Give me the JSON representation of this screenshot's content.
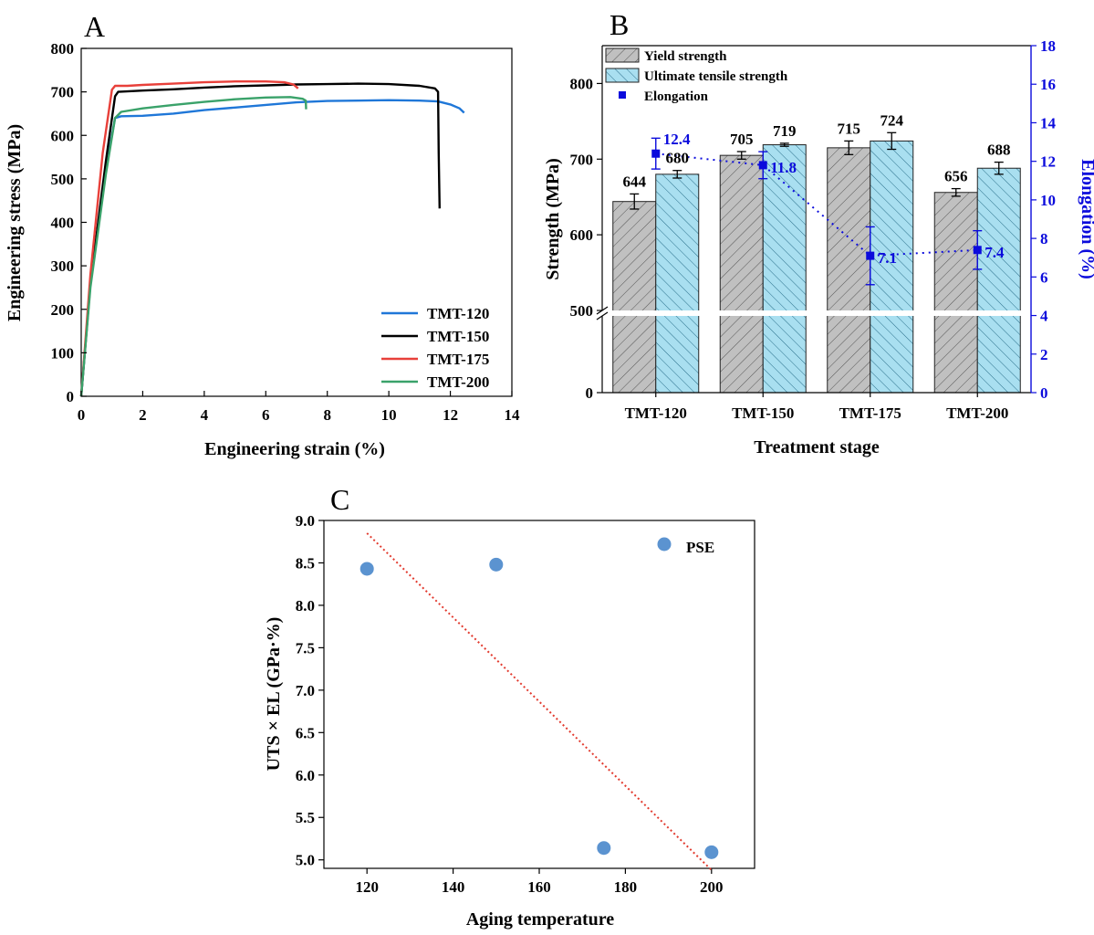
{
  "panels": {
    "a": "A",
    "b": "B",
    "c": "C"
  },
  "colors": {
    "tmt120": "#1f77d8",
    "tmt150": "#000000",
    "tmt175": "#e8403a",
    "tmt200": "#3aa26a",
    "yield_fill": "#c0c0c0",
    "uts_fill": "#a9dff0",
    "elong": "#0b0bdc",
    "pse": "#5b93d0",
    "fit": "#e23a2e"
  },
  "chart_data": [
    {
      "id": "A",
      "type": "line",
      "xlabel": "Engineering strain (%)",
      "ylabel": "Engineering stress (MPa)",
      "xlim": [
        0,
        14
      ],
      "ylim": [
        0,
        800
      ],
      "xticks": [
        0,
        2,
        4,
        6,
        8,
        10,
        12,
        14
      ],
      "yticks": [
        0,
        100,
        200,
        300,
        400,
        500,
        600,
        700,
        800
      ],
      "legend_position": "bottom-right",
      "series": [
        {
          "name": "TMT-120",
          "color": "#1f77d8",
          "points": [
            [
              0,
              0
            ],
            [
              0.3,
              260
            ],
            [
              0.8,
              520
            ],
            [
              1.1,
              640
            ],
            [
              1.3,
              644
            ],
            [
              2,
              645
            ],
            [
              3,
              650
            ],
            [
              4,
              658
            ],
            [
              5,
              664
            ],
            [
              6,
              670
            ],
            [
              7,
              676
            ],
            [
              8,
              679
            ],
            [
              9,
              680
            ],
            [
              10,
              681
            ],
            [
              11,
              680
            ],
            [
              11.6,
              678
            ],
            [
              12,
              671
            ],
            [
              12.3,
              662
            ],
            [
              12.45,
              652
            ]
          ]
        },
        {
          "name": "TMT-150",
          "color": "#000000",
          "points": [
            [
              0,
              0
            ],
            [
              0.3,
              260
            ],
            [
              0.8,
              540
            ],
            [
              1.1,
              690
            ],
            [
              1.2,
              700
            ],
            [
              2,
              703
            ],
            [
              3,
              706
            ],
            [
              4,
              710
            ],
            [
              5,
              713
            ],
            [
              6,
              715
            ],
            [
              7,
              717
            ],
            [
              8,
              718
            ],
            [
              9,
              719
            ],
            [
              10,
              718
            ],
            [
              11,
              714
            ],
            [
              11.5,
              708
            ],
            [
              11.6,
              700
            ],
            [
              11.62,
              560
            ],
            [
              11.65,
              432
            ]
          ]
        },
        {
          "name": "TMT-175",
          "color": "#e8403a",
          "points": [
            [
              0,
              0
            ],
            [
              0.3,
              280
            ],
            [
              0.7,
              560
            ],
            [
              1.0,
              705
            ],
            [
              1.1,
              714
            ],
            [
              1.5,
              714
            ],
            [
              2,
              716
            ],
            [
              3,
              719
            ],
            [
              4,
              722
            ],
            [
              5,
              724
            ],
            [
              6,
              724
            ],
            [
              6.6,
              722
            ],
            [
              6.9,
              717
            ],
            [
              7.05,
              708
            ]
          ]
        },
        {
          "name": "TMT-200",
          "color": "#3aa26a",
          "points": [
            [
              0,
              0
            ],
            [
              0.3,
              250
            ],
            [
              0.8,
              510
            ],
            [
              1.1,
              640
            ],
            [
              1.3,
              654
            ],
            [
              2,
              662
            ],
            [
              3,
              670
            ],
            [
              4,
              677
            ],
            [
              5,
              683
            ],
            [
              6,
              687
            ],
            [
              6.8,
              688
            ],
            [
              7.2,
              684
            ],
            [
              7.3,
              680
            ],
            [
              7.31,
              660
            ]
          ]
        }
      ]
    },
    {
      "id": "B",
      "type": "bar",
      "xlabel": "Treatment stage",
      "ylabel": "Strength (MPa)",
      "y2label": "Elongation (%)",
      "categories": [
        "TMT-120",
        "TMT-150",
        "TMT-175",
        "TMT-200"
      ],
      "y_ticks_lower": [
        0
      ],
      "y_ticks_upper": [
        500,
        600,
        700,
        800
      ],
      "upper_range": [
        500,
        850
      ],
      "y2lim": [
        0,
        18
      ],
      "y2ticks": [
        0,
        2,
        4,
        6,
        8,
        10,
        12,
        14,
        16,
        18
      ],
      "axis_break": true,
      "legend_position": "top-left",
      "series": [
        {
          "name": "Yield strength",
          "values": [
            644,
            705,
            715,
            656
          ],
          "errors": [
            10,
            5,
            9,
            5
          ],
          "labels": [
            "644",
            "705",
            "715",
            "656"
          ]
        },
        {
          "name": "Ultimate tensile strength",
          "values": [
            680,
            719,
            724,
            688
          ],
          "errors": [
            5,
            2,
            11,
            8
          ],
          "labels": [
            "680",
            "719",
            "724",
            "688"
          ]
        }
      ],
      "elongation": {
        "name": "Elongation",
        "values": [
          12.4,
          11.8,
          7.1,
          7.4
        ],
        "errors": [
          0.8,
          0.7,
          1.5,
          1.0
        ],
        "labels": [
          "12.4",
          "11.8",
          "7.1",
          "7.4"
        ]
      }
    },
    {
      "id": "C",
      "type": "scatter",
      "xlabel": "Aging temperature",
      "ylabel": "UTS × EL (GPa·%)",
      "xlim": [
        110,
        210
      ],
      "ylim": [
        4.9,
        9.0
      ],
      "xticks": [
        120,
        140,
        160,
        180,
        200
      ],
      "yticks": [
        5.0,
        5.5,
        6.0,
        6.5,
        7.0,
        7.5,
        8.0,
        8.5,
        9.0
      ],
      "legend_position": "top-right",
      "series": [
        {
          "name": "PSE",
          "x": [
            120,
            150,
            175,
            200
          ],
          "y": [
            8.43,
            8.48,
            5.14,
            5.09
          ]
        }
      ],
      "fit_line": {
        "x": [
          120,
          200
        ],
        "y": [
          8.85,
          4.88
        ]
      }
    }
  ]
}
